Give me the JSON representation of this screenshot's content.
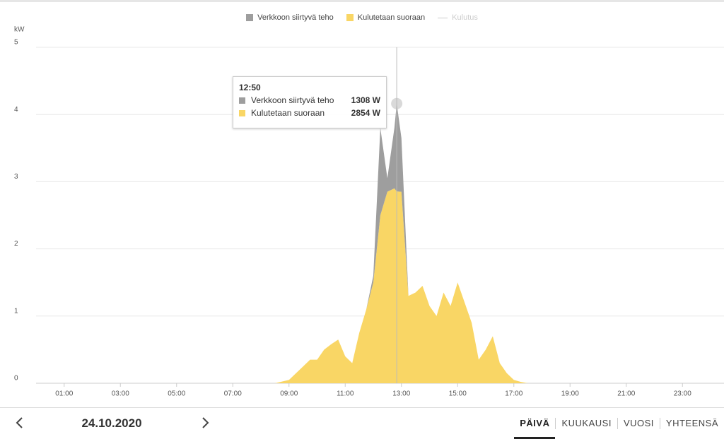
{
  "chart_data": {
    "type": "stacked_area",
    "y_label": "kW",
    "x": [
      0,
      8.5,
      9,
      9.25,
      9.5,
      9.75,
      10,
      10.25,
      10.5,
      10.75,
      11,
      11.25,
      11.5,
      11.75,
      12,
      12.25,
      12.5,
      12.75,
      12.8333,
      13,
      13.25,
      13.5,
      13.75,
      14,
      14.25,
      14.5,
      14.75,
      15,
      15.25,
      15.5,
      15.75,
      16,
      16.25,
      16.5,
      16.75,
      17,
      17.25,
      17.5,
      24
    ],
    "series": [
      {
        "name": "Verkkoon siirtyvä teho",
        "color": "#9e9e9e",
        "stack": 1,
        "hidden": false,
        "values": [
          0,
          0,
          0,
          0,
          0,
          0,
          0,
          0,
          0,
          0,
          0,
          0,
          0,
          0,
          0.1,
          1.3,
          0.2,
          0.9,
          1.308,
          0.8,
          0,
          0,
          0,
          0,
          0,
          0,
          0,
          0,
          0,
          0,
          0,
          0,
          0,
          0,
          0,
          0,
          0,
          0,
          0
        ]
      },
      {
        "name": "Kulutetaan suoraan",
        "color": "#f9d665",
        "stack": 0,
        "hidden": false,
        "values": [
          0,
          0,
          0.05,
          0.15,
          0.25,
          0.35,
          0.35,
          0.5,
          0.58,
          0.65,
          0.4,
          0.3,
          0.75,
          1.1,
          1.5,
          2.5,
          2.85,
          2.9,
          2.854,
          2.85,
          1.3,
          1.35,
          1.45,
          1.15,
          1.0,
          1.35,
          1.15,
          1.5,
          1.2,
          0.9,
          0.35,
          0.5,
          0.7,
          0.3,
          0.15,
          0.05,
          0.02,
          0,
          0
        ]
      },
      {
        "name": "Kulutus",
        "color": "#cccccc",
        "hidden": true,
        "line": true,
        "values": [
          null,
          null,
          null,
          null,
          null,
          null,
          null,
          null,
          null,
          null,
          null,
          null,
          null,
          null,
          null,
          null,
          null,
          null,
          null,
          null,
          null,
          null,
          null,
          null,
          null,
          null,
          null,
          null,
          null,
          null,
          null,
          null,
          null,
          null,
          null,
          null,
          null,
          null,
          null
        ]
      }
    ],
    "xlim": [
      0,
      24
    ],
    "xticks": [
      {
        "value": 1,
        "label": "01:00"
      },
      {
        "value": 3,
        "label": "03:00"
      },
      {
        "value": 5,
        "label": "05:00"
      },
      {
        "value": 7,
        "label": "07:00"
      },
      {
        "value": 9,
        "label": "09:00"
      },
      {
        "value": 11,
        "label": "11:00"
      },
      {
        "value": 13,
        "label": "13:00"
      },
      {
        "value": 15,
        "label": "15:00"
      },
      {
        "value": 17,
        "label": "17:00"
      },
      {
        "value": 19,
        "label": "19:00"
      },
      {
        "value": 21,
        "label": "21:00"
      },
      {
        "value": 23,
        "label": "23:00"
      }
    ],
    "ylim": [
      0,
      5
    ],
    "yticks": [
      0,
      1,
      2,
      3,
      4,
      5
    ],
    "grid": true,
    "tooltip": {
      "x": 12.8333,
      "label": "12:50",
      "values": [
        1.308,
        2.854
      ],
      "value_labels": [
        "1308 W",
        "2854 W"
      ]
    }
  },
  "nav": {
    "date": "24.10.2020",
    "tabs": [
      "PÄIVÄ",
      "KUUKAUSI",
      "VUOSI",
      "YHTEENSÄ"
    ],
    "active": 0
  }
}
